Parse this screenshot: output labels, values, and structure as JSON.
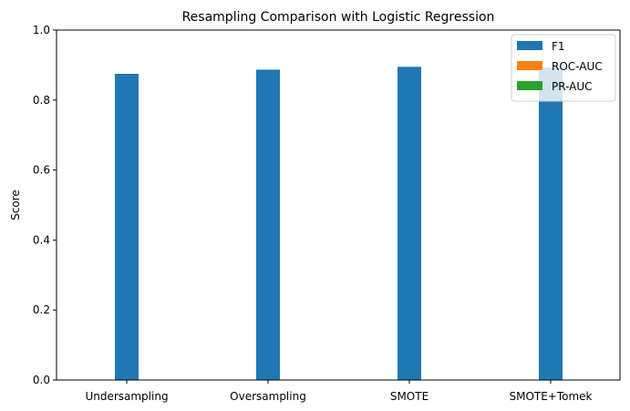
{
  "chart_data": {
    "type": "bar",
    "title": "Resampling Comparison with Logistic Regression",
    "xlabel": "",
    "ylabel": "Score",
    "ylim": [
      0,
      1
    ],
    "yticks": [
      "0.0",
      "0.2",
      "0.4",
      "0.6",
      "0.8",
      "1.0"
    ],
    "categories": [
      "Undersampling",
      "Oversampling",
      "SMOTE",
      "SMOTE+Tomek"
    ],
    "series": [
      {
        "name": "F1",
        "color": "#1f77b4",
        "values": [
          0.875,
          0.887,
          0.895,
          0.893
        ]
      },
      {
        "name": "ROC-AUC",
        "color": "#ff7f0e",
        "values": [
          0,
          0,
          0,
          0
        ]
      },
      {
        "name": "PR-AUC",
        "color": "#2ca02c",
        "values": [
          0,
          0,
          0,
          0
        ]
      }
    ],
    "legend_position": "top-right",
    "grid": false
  }
}
